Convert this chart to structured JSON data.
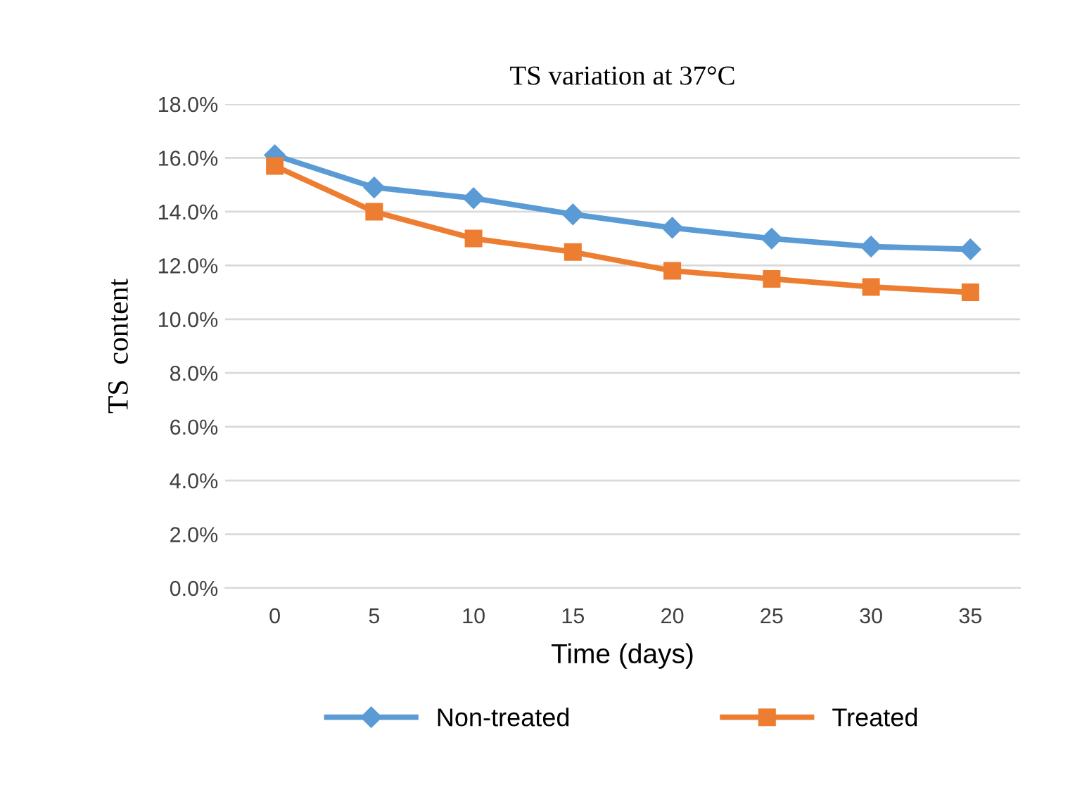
{
  "chart_data": {
    "type": "line",
    "title": "TS variation at 37°C",
    "xlabel": "Time (days)",
    "ylabel": "TS  content",
    "categories": [
      "0",
      "5",
      "10",
      "15",
      "20",
      "25",
      "30",
      "35"
    ],
    "series": [
      {
        "name": "Non-treated",
        "color": "#5b9bd5",
        "marker": "diamond",
        "values": [
          16.1,
          14.9,
          14.5,
          13.9,
          13.4,
          13.0,
          12.7,
          12.6
        ]
      },
      {
        "name": "Treated",
        "color": "#ed7d31",
        "marker": "square",
        "values": [
          15.7,
          14.0,
          13.0,
          12.5,
          11.8,
          11.5,
          11.2,
          11.0
        ]
      }
    ],
    "ylim": [
      0,
      18
    ],
    "yticks": [
      {
        "value": 0,
        "label": "0.0%"
      },
      {
        "value": 2,
        "label": "2.0%"
      },
      {
        "value": 4,
        "label": "4.0%"
      },
      {
        "value": 6,
        "label": "6.0%"
      },
      {
        "value": 8,
        "label": "8.0%"
      },
      {
        "value": 10,
        "label": "10.0%"
      },
      {
        "value": 12,
        "label": "12.0%"
      },
      {
        "value": 14,
        "label": "14.0%"
      },
      {
        "value": 16,
        "label": "16.0%"
      },
      {
        "value": 18,
        "label": "18.0%"
      }
    ],
    "grid": "y",
    "legend": "bottom",
    "line_style": "solid"
  }
}
